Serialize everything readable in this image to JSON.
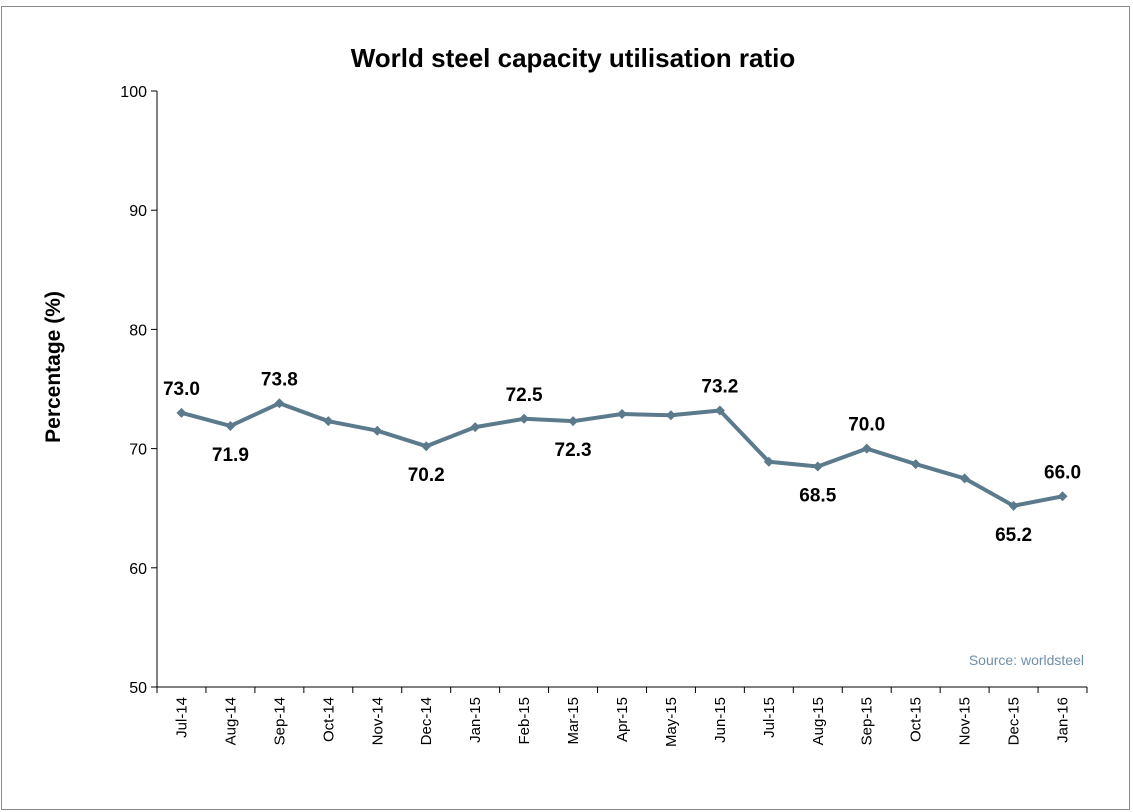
{
  "chart_data": {
    "type": "line",
    "title": "World steel capacity utilisation ratio",
    "ylabel": "Percentage (%)",
    "xlabel": "",
    "ylim": [
      50,
      100
    ],
    "yticks": [
      50,
      60,
      70,
      80,
      90,
      100
    ],
    "grid": false,
    "legend": "none",
    "source": "Source: worldsteel",
    "line_color": "#5b7a8c",
    "categories": [
      "Jul-14",
      "Aug-14",
      "Sep-14",
      "Oct-14",
      "Nov-14",
      "Dec-14",
      "Jan-15",
      "Feb-15",
      "Mar-15",
      "Apr-15",
      "May-15",
      "Jun-15",
      "Jul-15",
      "Aug-15",
      "Sep-15",
      "Oct-15",
      "Nov-15",
      "Dec-15",
      "Jan-16"
    ],
    "values": [
      73.0,
      71.9,
      73.8,
      72.3,
      71.5,
      70.2,
      71.8,
      72.5,
      72.3,
      72.9,
      72.8,
      73.2,
      68.9,
      68.5,
      70.0,
      68.7,
      67.5,
      65.2,
      66.0
    ],
    "data_labels": [
      {
        "index": 0,
        "text": "73.0",
        "position": "above"
      },
      {
        "index": 1,
        "text": "71.9",
        "position": "below"
      },
      {
        "index": 2,
        "text": "73.8",
        "position": "above"
      },
      {
        "index": 5,
        "text": "70.2",
        "position": "below"
      },
      {
        "index": 7,
        "text": "72.5",
        "position": "above"
      },
      {
        "index": 8,
        "text": "72.3",
        "position": "below"
      },
      {
        "index": 11,
        "text": "73.2",
        "position": "above"
      },
      {
        "index": 13,
        "text": "68.5",
        "position": "below"
      },
      {
        "index": 14,
        "text": "70.0",
        "position": "above"
      },
      {
        "index": 17,
        "text": "65.2",
        "position": "below"
      },
      {
        "index": 18,
        "text": "66.0",
        "position": "above"
      }
    ]
  }
}
